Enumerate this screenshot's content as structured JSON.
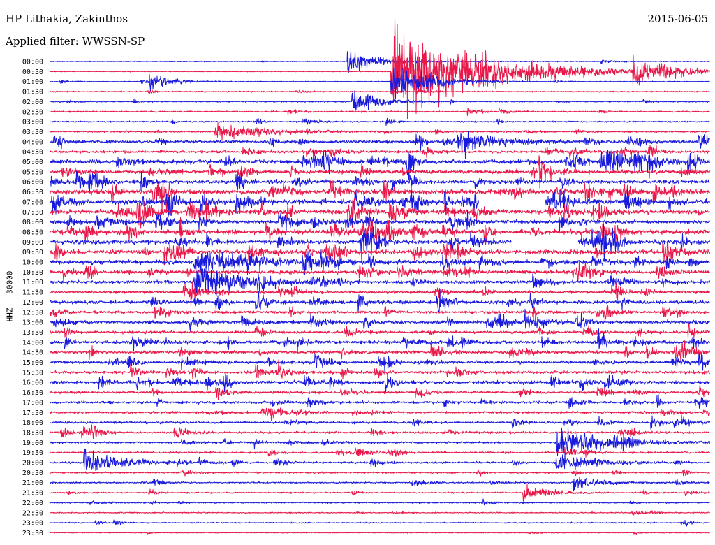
{
  "header": {
    "station": "HP Lithakia, Zakinthos",
    "filter": "Applied filter: WWSSN-SP",
    "date": "2015-06-05"
  },
  "chart_data": {
    "type": "line",
    "title": "HP Lithakia, Zakinthos",
    "subtitle": "Applied filter: WWSSN-SP",
    "date": "2015-06-05",
    "ylabel": "HHZ - 30000",
    "xlabel": "",
    "colors": {
      "even_rows": "#1a1adc",
      "odd_rows": "#e8184a"
    },
    "row_labels": [
      "00:00",
      "00:30",
      "01:00",
      "01:30",
      "02:00",
      "02:30",
      "03:00",
      "03:30",
      "04:00",
      "04:30",
      "05:00",
      "05:30",
      "06:00",
      "06:30",
      "07:00",
      "07:30",
      "08:00",
      "08:30",
      "09:00",
      "09:30",
      "10:00",
      "10:30",
      "11:00",
      "11:30",
      "12:00",
      "12:30",
      "13:00",
      "13:30",
      "14:00",
      "14:30",
      "15:00",
      "15:30",
      "16:00",
      "16:30",
      "17:00",
      "17:30",
      "18:00",
      "18:30",
      "19:00",
      "19:30",
      "20:00",
      "20:30",
      "21:00",
      "21:30",
      "22:00",
      "22:30",
      "23:00",
      "23:30"
    ],
    "noise_level": [
      0.6,
      0.5,
      0.6,
      0.8,
      0.9,
      1.0,
      1.0,
      1.2,
      2.2,
      1.8,
      3.0,
      2.6,
      2.6,
      3.4,
      3.6,
      3.2,
      2.6,
      3.4,
      3.0,
      3.2,
      2.8,
      2.6,
      2.4,
      2.2,
      2.4,
      2.0,
      2.4,
      2.0,
      2.6,
      2.2,
      2.2,
      2.0,
      2.4,
      1.8,
      1.8,
      1.6,
      1.6,
      1.5,
      1.4,
      1.4,
      1.4,
      1.2,
      1.0,
      1.0,
      0.9,
      0.8,
      0.8,
      0.6
    ],
    "events": [
      {
        "row": 0,
        "minute": 13.5,
        "amplitude": 14,
        "duration": 1.2
      },
      {
        "row": 1,
        "minute": 15.5,
        "amplitude": 60,
        "duration": 3.5
      },
      {
        "row": 1,
        "minute": 26.5,
        "amplitude": 12,
        "duration": 2.0
      },
      {
        "row": 2,
        "minute": 4.5,
        "amplitude": 10,
        "duration": 1.0
      },
      {
        "row": 2,
        "minute": 15.5,
        "amplitude": 24,
        "duration": 1.5
      },
      {
        "row": 4,
        "minute": 13.7,
        "amplitude": 14,
        "duration": 1.0
      },
      {
        "row": 7,
        "minute": 7.5,
        "amplitude": 10,
        "duration": 2.0
      },
      {
        "row": 8,
        "minute": 18.5,
        "amplitude": 16,
        "duration": 1.5
      },
      {
        "row": 10,
        "minute": 25.0,
        "amplitude": 16,
        "duration": 1.5
      },
      {
        "row": 20,
        "minute": 6.5,
        "amplitude": 14,
        "duration": 2.5
      },
      {
        "row": 22,
        "minute": 6.5,
        "amplitude": 16,
        "duration": 2.0
      },
      {
        "row": 38,
        "minute": 23.0,
        "amplitude": 20,
        "duration": 2.0
      },
      {
        "row": 40,
        "minute": 1.5,
        "amplitude": 14,
        "duration": 1.5
      },
      {
        "row": 40,
        "minute": 23.0,
        "amplitude": 12,
        "duration": 1.5
      },
      {
        "row": 42,
        "minute": 23.8,
        "amplitude": 10,
        "duration": 1.0
      },
      {
        "row": 43,
        "minute": 21.5,
        "amplitude": 10,
        "duration": 1.0
      }
    ],
    "gaps": [
      {
        "row": 14,
        "start_minute": 19.5,
        "end_minute": 22.5
      },
      {
        "row": 18,
        "start_minute": 21.0,
        "end_minute": 24.0
      }
    ]
  }
}
